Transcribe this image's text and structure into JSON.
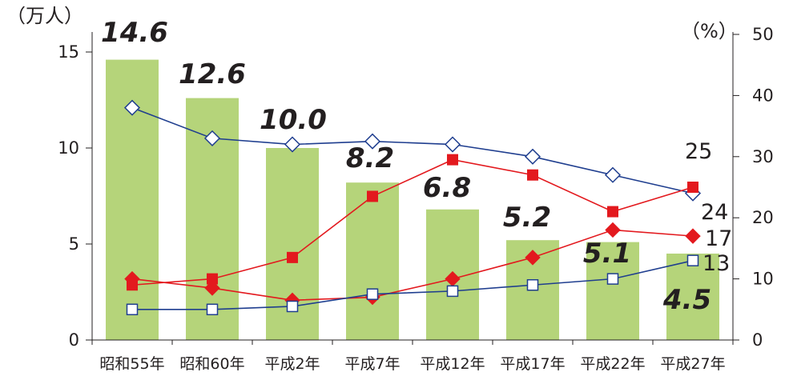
{
  "chart_data": {
    "type": "bar",
    "title": "",
    "categories": [
      "昭和55年",
      "昭和60年",
      "平成2年",
      "平成7年",
      "平成12年",
      "平成17年",
      "平成22年",
      "平成27年"
    ],
    "left_axis": {
      "unit_label": "（万人）",
      "ylim": [
        0,
        15
      ],
      "ticks": [
        0,
        5,
        10,
        15
      ]
    },
    "right_axis": {
      "unit_label": "（%）",
      "ylim": [
        0,
        50
      ],
      "ticks": [
        0,
        10,
        20,
        30,
        40,
        50
      ]
    },
    "bars": {
      "name": "",
      "axis": "left",
      "color": "#b5d47a",
      "values": [
        14.6,
        12.6,
        10.0,
        8.2,
        6.8,
        5.2,
        5.1,
        4.5
      ],
      "labels": [
        "14.6",
        "12.6",
        "10.0",
        "8.2",
        "6.8",
        "5.2",
        "5.1",
        "4.5"
      ]
    },
    "series": [
      {
        "name": "",
        "axis": "right",
        "type": "line",
        "marker": "diamond-open",
        "color": "#1f3e8f",
        "values": [
          38,
          33,
          32,
          32.5,
          32,
          30,
          27,
          24
        ],
        "end_label": "24"
      },
      {
        "name": "",
        "axis": "right",
        "type": "line",
        "marker": "square-filled",
        "color": "#e3191e",
        "values": [
          9,
          10,
          13.5,
          23.5,
          29.5,
          27,
          21,
          25
        ],
        "end_label": "25"
      },
      {
        "name": "",
        "axis": "right",
        "type": "line",
        "marker": "diamond-filled",
        "color": "#e3191e",
        "values": [
          10,
          8.5,
          6.5,
          7,
          10,
          13.5,
          18,
          17
        ],
        "end_label": "17"
      },
      {
        "name": "",
        "axis": "right",
        "type": "line",
        "marker": "square-open",
        "color": "#1f3e8f",
        "values": [
          5,
          5,
          5.5,
          7.5,
          8,
          9,
          10,
          13
        ],
        "end_label": "13"
      }
    ],
    "grid": false,
    "legend": "none"
  }
}
